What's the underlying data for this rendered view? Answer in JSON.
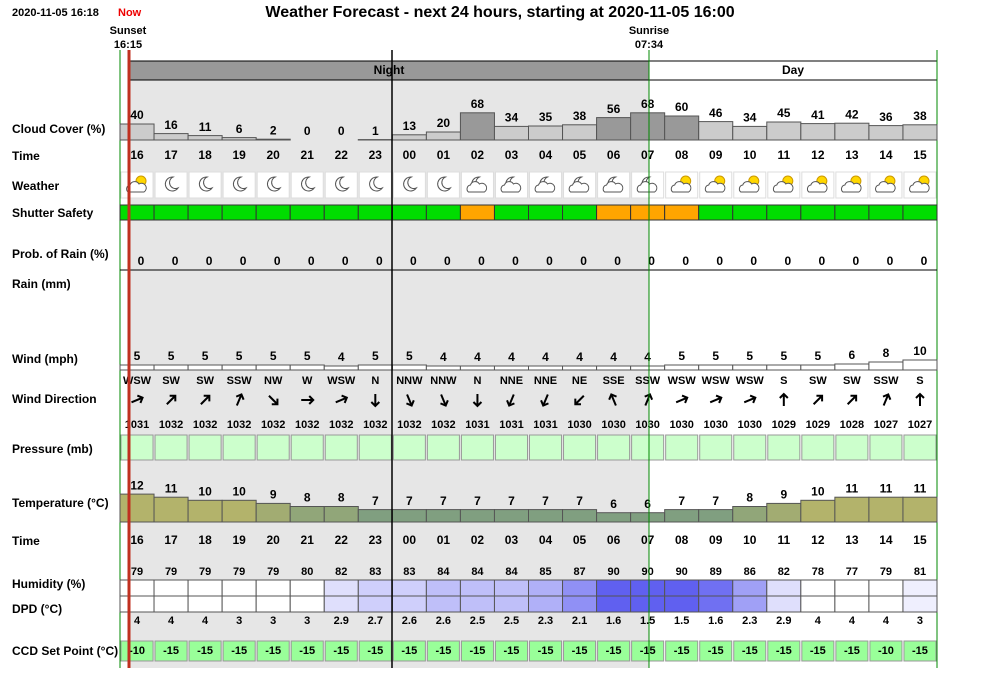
{
  "header": {
    "datetime": "2020-11-05 16:18",
    "now": "Now",
    "title": "Weather Forecast - next 24 hours, starting at 2020-11-05 16:00",
    "sunset_label": "Sunset",
    "sunset_time": "16:15",
    "sunrise_label": "Sunrise",
    "sunrise_time": "07:34",
    "night": "Night",
    "day": "Day"
  },
  "row_labels": {
    "cloud": "Cloud Cover (%)",
    "time": "Time",
    "weather": "Weather",
    "shutter": "Shutter Safety",
    "rain_prob": "Prob. of Rain (%)",
    "rain": "Rain (mm)",
    "wind": "Wind (mph)",
    "wind_dir": "Wind Direction",
    "pressure": "Pressure (mb)",
    "temperature": "Temperature (°C)",
    "time2": "Time",
    "humidity": "Humidity (%)",
    "dpd": "DPD (°C)",
    "ccd": "CCD Set Point (°C)"
  },
  "hours": [
    "16",
    "17",
    "18",
    "19",
    "20",
    "21",
    "22",
    "23",
    "00",
    "01",
    "02",
    "03",
    "04",
    "05",
    "06",
    "07",
    "08",
    "09",
    "10",
    "11",
    "12",
    "13",
    "14",
    "15"
  ],
  "cloud_cover": [
    40,
    16,
    11,
    6,
    2,
    0,
    0,
    1,
    13,
    20,
    68,
    34,
    35,
    38,
    56,
    68,
    60,
    46,
    34,
    45,
    41,
    42,
    36,
    38
  ],
  "shutter_colors": [
    "#00dd00",
    "#00dd00",
    "#00dd00",
    "#00dd00",
    "#00dd00",
    "#00dd00",
    "#00dd00",
    "#00dd00",
    "#00dd00",
    "#00dd00",
    "#ffa500",
    "#00dd00",
    "#00dd00",
    "#00dd00",
    "#ffa500",
    "#ffa500",
    "#ffa500",
    "#00dd00",
    "#00dd00",
    "#00dd00",
    "#00dd00",
    "#00dd00",
    "#00dd00",
    "#00dd00"
  ],
  "rain_prob": [
    0,
    0,
    0,
    0,
    0,
    0,
    0,
    0,
    0,
    0,
    0,
    0,
    0,
    0,
    0,
    0,
    0,
    0,
    0,
    0,
    0,
    0,
    0,
    0
  ],
  "wind": [
    5,
    5,
    5,
    5,
    5,
    5,
    4,
    5,
    5,
    4,
    4,
    4,
    4,
    4,
    4,
    4,
    5,
    5,
    5,
    5,
    5,
    6,
    8,
    10
  ],
  "wind_dir": [
    "WSW",
    "SW",
    "SW",
    "SSW",
    "NW",
    "W",
    "WSW",
    "N",
    "NNW",
    "NNW",
    "N",
    "NNE",
    "NNE",
    "NE",
    "SSE",
    "SSW",
    "WSW",
    "WSW",
    "WSW",
    "S",
    "SW",
    "SW",
    "SSW",
    "S"
  ],
  "pressure": [
    1031,
    1032,
    1032,
    1032,
    1032,
    1032,
    1032,
    1032,
    1032,
    1032,
    1031,
    1031,
    1031,
    1030,
    1030,
    1030,
    1030,
    1030,
    1030,
    1029,
    1029,
    1028,
    1027,
    1027
  ],
  "temperature": [
    12,
    11,
    10,
    10,
    9,
    8,
    8,
    7,
    7,
    7,
    7,
    7,
    7,
    7,
    6,
    6,
    7,
    7,
    8,
    9,
    10,
    11,
    11,
    11
  ],
  "humidity": [
    79,
    79,
    79,
    79,
    79,
    80,
    82,
    83,
    83,
    84,
    84,
    84,
    85,
    87,
    90,
    90,
    90,
    89,
    86,
    82,
    78,
    77,
    79,
    81
  ],
  "dpd": [
    4,
    4,
    4,
    3,
    3,
    3,
    2.9,
    2.7,
    2.6,
    2.6,
    2.5,
    2.5,
    2.3,
    2.1,
    1.6,
    1.5,
    1.5,
    1.6,
    2.3,
    2.9,
    4,
    4,
    4,
    3
  ],
  "ccd": [
    -10,
    -15,
    -15,
    -15,
    -15,
    -15,
    -15,
    -15,
    -15,
    -15,
    -15,
    -15,
    -15,
    -15,
    -15,
    -15,
    -15,
    -15,
    -15,
    -15,
    -15,
    -15,
    -10,
    -15
  ]
}
